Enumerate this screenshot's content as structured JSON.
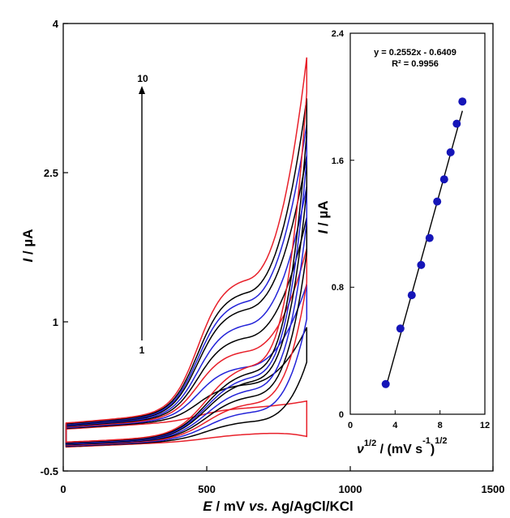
{
  "colors": {
    "black": "#000000",
    "red": "#e8202a",
    "blue": "#2323d8",
    "dot": "#1515b8"
  },
  "chart_data": [
    {
      "type": "line",
      "subtype": "cyclic-voltammogram",
      "xlabel_main": "E",
      "xlabel_rest": " / mV ",
      "xlabel_vs": "vs.",
      "xlabel_ref": " Ag/AgCl/KCl",
      "ylabel_main": "I",
      "ylabel_rest": " / µA",
      "xlim": [
        0,
        1500
      ],
      "ylim": [
        -0.5,
        4
      ],
      "x_ticks": [
        "0",
        "500",
        "1000",
        "1500"
      ],
      "y_ticks": [
        "-0.5",
        "1",
        "2.5",
        "4"
      ],
      "grid": false,
      "annotation": {
        "from_label": "1",
        "to_label": "10"
      },
      "series": [
        {
          "color_key": "red",
          "peak": 0.1,
          "end": 0.25
        },
        {
          "color_key": "black",
          "peak": 0.33,
          "end": 0.98
        },
        {
          "color_key": "blue",
          "peak": 0.5,
          "end": 1.4
        },
        {
          "color_key": "red",
          "peak": 0.65,
          "end": 1.75
        },
        {
          "color_key": "black",
          "peak": 0.78,
          "end": 2.05
        },
        {
          "color_key": "blue",
          "peak": 0.9,
          "end": 2.35
        },
        {
          "color_key": "black",
          "peak": 1.05,
          "end": 2.65
        },
        {
          "color_key": "blue",
          "peak": 1.12,
          "end": 2.95
        },
        {
          "color_key": "black",
          "peak": 1.2,
          "end": 3.2
        },
        {
          "color_key": "red",
          "peak": 1.32,
          "end": 3.6
        }
      ]
    },
    {
      "type": "scatter",
      "subtype": "inset-linear-fit",
      "xlabel_nu": "ν",
      "xlabel_exp": "1/2",
      "xlabel_unit": " / (mV s",
      "xlabel_neg1": "-1",
      "xlabel_close": ")",
      "xlabel_exp2": "1/2",
      "ylabel_main": "I",
      "ylabel_rest": " / µA",
      "xlim": [
        0,
        12
      ],
      "ylim": [
        0,
        2.4
      ],
      "x_ticks": [
        "0",
        "4",
        "8",
        "12"
      ],
      "y_ticks": [
        "0",
        "0.8",
        "1.6",
        "2.4"
      ],
      "equation": "y = 0.2552x - 0.6409",
      "r_squared": "R² = 0.9956",
      "slope": 0.2552,
      "intercept": -0.6409,
      "x": [
        3.16,
        4.47,
        5.48,
        6.32,
        7.07,
        7.75,
        8.37,
        8.94,
        9.49,
        10.0
      ],
      "y": [
        0.19,
        0.54,
        0.75,
        0.94,
        1.11,
        1.34,
        1.48,
        1.65,
        1.83,
        1.97
      ]
    }
  ]
}
